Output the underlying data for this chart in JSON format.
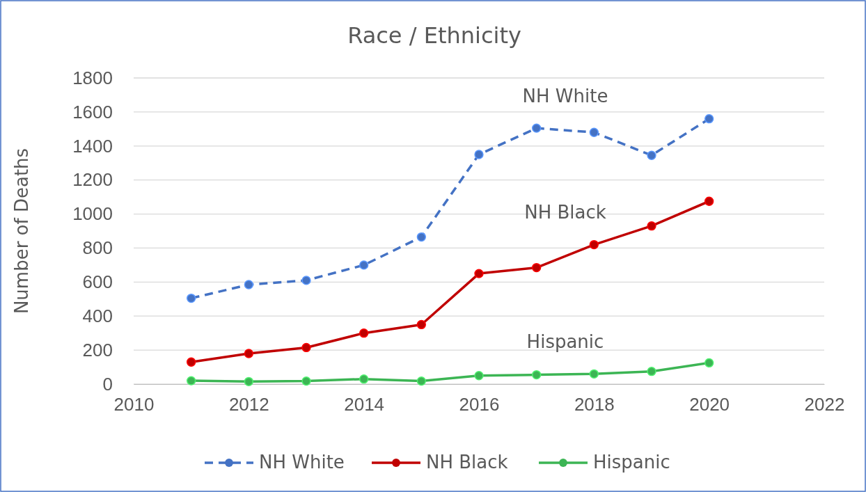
{
  "chart_data": {
    "type": "line",
    "title": "Race / Ethnicity",
    "ylabel": "Number of Deaths",
    "x": [
      2011,
      2012,
      2013,
      2014,
      2015,
      2016,
      2017,
      2018,
      2019,
      2020
    ],
    "series": [
      {
        "name": "NH White",
        "color": "#4472c4",
        "line_style": "dashed",
        "values": [
          505,
          585,
          610,
          700,
          865,
          1350,
          1505,
          1480,
          1345,
          1560
        ]
      },
      {
        "name": "NH Black",
        "color": "#c00000",
        "line_style": "solid",
        "values": [
          130,
          180,
          215,
          300,
          350,
          650,
          685,
          820,
          930,
          1075
        ]
      },
      {
        "name": "Hispanic",
        "color": "#3cb554",
        "line_style": "solid",
        "values": [
          20,
          15,
          18,
          30,
          18,
          50,
          55,
          60,
          75,
          125
        ]
      }
    ],
    "xlim": [
      2010,
      2022
    ],
    "xticks": [
      2010,
      2012,
      2014,
      2016,
      2018,
      2020,
      2022
    ],
    "ylim": [
      0,
      1800
    ],
    "yticks": [
      0,
      200,
      400,
      600,
      800,
      1000,
      1200,
      1400,
      1600,
      1800
    ],
    "grid": "y",
    "legend": "bottom",
    "marker": "circle"
  }
}
